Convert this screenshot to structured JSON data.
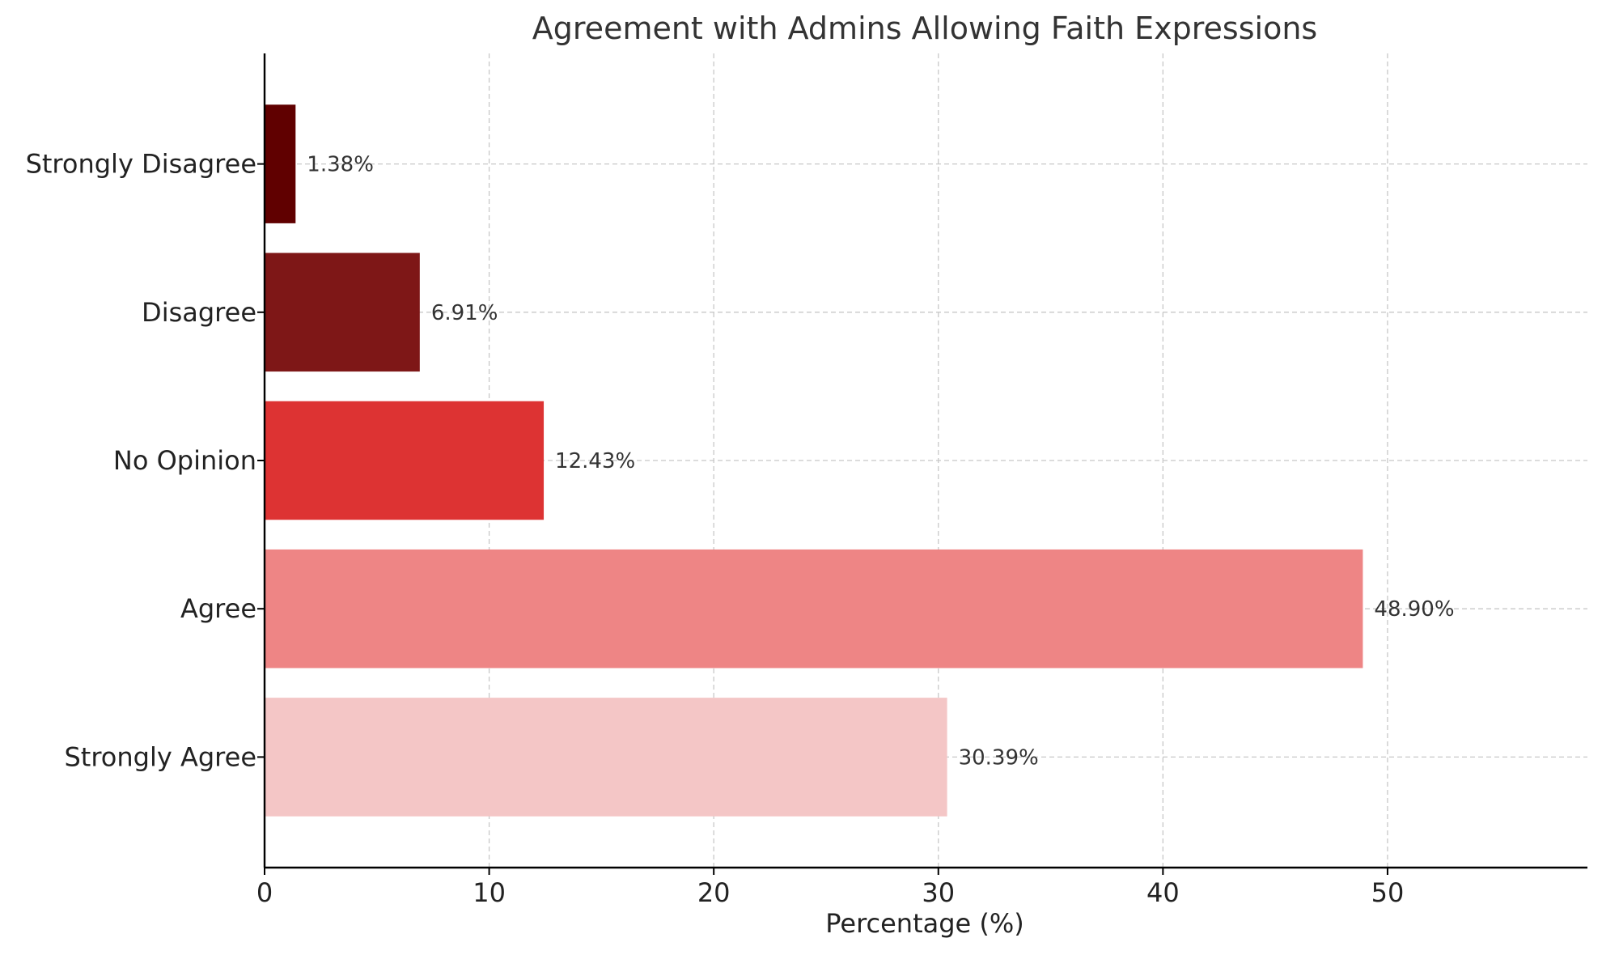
{
  "chart_data": {
    "type": "bar",
    "orientation": "horizontal",
    "title": "Agreement with Admins Allowing Faith Expressions",
    "xlabel": "Percentage (%)",
    "ylabel": "",
    "categories": [
      "Strongly Agree",
      "Agree",
      "No Opinion",
      "Disagree",
      "Strongly Disagree"
    ],
    "values": [
      30.39,
      48.9,
      12.43,
      6.91,
      1.38
    ],
    "value_labels": [
      "30.39%",
      "48.90%",
      "12.43%",
      "6.91%",
      "1.38%"
    ],
    "colors": [
      "#f4c6c6",
      "#ee8585",
      "#dd3333",
      "#7e1717",
      "#600000"
    ],
    "xlim": [
      0,
      58.9
    ],
    "xticks": [
      0,
      10,
      20,
      30,
      40,
      50
    ],
    "grid": true
  }
}
